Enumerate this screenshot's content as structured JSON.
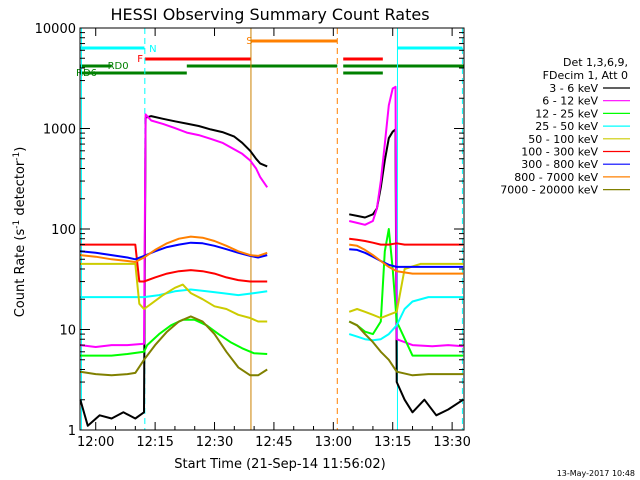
{
  "chart_data": {
    "type": "line",
    "title": "HESSI Observing Summary Count Rates",
    "xlabel": "Start Time (21-Sep-14 11:56:02)",
    "ylabel_main": "Count Rate (s",
    "ylabel_sup1": "-1",
    "ylabel_mid": " detector",
    "ylabel_sup2": "-1",
    "ylabel_end": ")",
    "ylim": [
      1,
      10000
    ],
    "yscale": "log",
    "xlim_minutes": [
      -3.97,
      93.0
    ],
    "x_ticks": [
      {
        "label": "12:00",
        "min": 0
      },
      {
        "label": "12:15",
        "min": 15
      },
      {
        "label": "12:30",
        "min": 30
      },
      {
        "label": "12:45",
        "min": 45
      },
      {
        "label": "13:00",
        "min": 60
      },
      {
        "label": "13:15",
        "min": 75
      },
      {
        "label": "13:30",
        "min": 90
      }
    ],
    "y_ticks": [
      {
        "label": "1",
        "v": 1
      },
      {
        "label": "10",
        "v": 10
      },
      {
        "label": "100",
        "v": 100
      },
      {
        "label": "1000",
        "v": 1000
      },
      {
        "label": "10000",
        "v": 10000
      }
    ],
    "legend_header": [
      "Det 1,3,6,9,",
      "FDecim 1, Att 0"
    ],
    "series": [
      {
        "name": "3 - 6 keV",
        "color": "#000000",
        "points": [
          [
            -3.9,
            2
          ],
          [
            -2,
            1.1
          ],
          [
            1,
            1.4
          ],
          [
            4,
            1.3
          ],
          [
            7,
            1.5
          ],
          [
            10,
            1.3
          ],
          [
            12.2,
            1.5
          ],
          [
            12.6,
            1280
          ],
          [
            14,
            1330
          ],
          [
            17,
            1250
          ],
          [
            20,
            1180
          ],
          [
            23,
            1120
          ],
          [
            26,
            1060
          ],
          [
            29,
            980
          ],
          [
            32,
            920
          ],
          [
            35,
            830
          ],
          [
            37,
            720
          ],
          [
            39,
            600
          ],
          [
            40.5,
            500
          ],
          [
            41.5,
            450
          ],
          [
            43.3,
            420
          ],
          [
            64,
            140
          ],
          [
            66,
            135
          ],
          [
            68,
            130
          ],
          [
            70,
            140
          ],
          [
            71,
            160
          ],
          [
            72,
            260
          ],
          [
            73,
            480
          ],
          [
            74,
            800
          ],
          [
            75,
            930
          ],
          [
            75.7,
            980
          ],
          [
            76,
            3
          ],
          [
            78,
            2
          ],
          [
            80,
            1.5
          ],
          [
            83,
            2
          ],
          [
            86,
            1.4
          ],
          [
            89,
            1.6
          ],
          [
            92.8,
            2
          ]
        ]
      },
      {
        "name": "6 - 12 keV",
        "color": "#ff00ff",
        "points": [
          [
            -3.9,
            7
          ],
          [
            0,
            6.7
          ],
          [
            4,
            7
          ],
          [
            8,
            7
          ],
          [
            12.2,
            7.2
          ],
          [
            12.6,
            1380
          ],
          [
            14,
            1200
          ],
          [
            17,
            1110
          ],
          [
            20,
            1010
          ],
          [
            23,
            910
          ],
          [
            26,
            860
          ],
          [
            29,
            790
          ],
          [
            32,
            720
          ],
          [
            35,
            620
          ],
          [
            37,
            560
          ],
          [
            39,
            480
          ],
          [
            40.5,
            400
          ],
          [
            41.5,
            330
          ],
          [
            43.3,
            260
          ],
          [
            64,
            120
          ],
          [
            66,
            115
          ],
          [
            68,
            110
          ],
          [
            70,
            120
          ],
          [
            71,
            160
          ],
          [
            72,
            300
          ],
          [
            73,
            700
          ],
          [
            74,
            1700
          ],
          [
            75,
            2500
          ],
          [
            75.7,
            2600
          ],
          [
            76,
            8
          ],
          [
            80,
            7
          ],
          [
            85,
            6.8
          ],
          [
            89,
            7
          ],
          [
            92.8,
            6.8
          ]
        ]
      },
      {
        "name": "12 - 25 keV",
        "color": "#00ff00",
        "points": [
          [
            -3.9,
            5.5
          ],
          [
            0,
            5.5
          ],
          [
            4,
            5.5
          ],
          [
            8,
            5.7
          ],
          [
            12.2,
            6
          ],
          [
            13,
            7
          ],
          [
            16,
            9
          ],
          [
            19,
            11
          ],
          [
            22,
            12.5
          ],
          [
            25,
            12.5
          ],
          [
            28,
            11
          ],
          [
            31,
            9
          ],
          [
            34,
            7.5
          ],
          [
            37,
            6.5
          ],
          [
            40,
            5.8
          ],
          [
            43.3,
            5.7
          ],
          [
            64,
            12
          ],
          [
            66,
            11
          ],
          [
            68,
            9.5
          ],
          [
            70,
            9
          ],
          [
            72,
            12
          ],
          [
            73,
            60
          ],
          [
            74,
            100
          ],
          [
            75,
            40
          ],
          [
            76,
            12
          ],
          [
            80,
            5.5
          ],
          [
            85,
            5.5
          ],
          [
            89,
            5.5
          ],
          [
            92.8,
            5.5
          ]
        ]
      },
      {
        "name": "25 - 50 keV",
        "color": "#00ffff",
        "points": [
          [
            -3.9,
            21
          ],
          [
            0,
            21
          ],
          [
            4,
            21
          ],
          [
            8,
            21
          ],
          [
            12.2,
            21
          ],
          [
            16,
            22
          ],
          [
            20,
            24
          ],
          [
            24,
            25
          ],
          [
            28,
            24
          ],
          [
            32,
            23
          ],
          [
            36,
            22
          ],
          [
            40,
            23
          ],
          [
            43.3,
            24
          ],
          [
            64,
            9
          ],
          [
            66,
            8.5
          ],
          [
            68,
            8
          ],
          [
            70,
            7.8
          ],
          [
            72,
            8
          ],
          [
            74,
            9
          ],
          [
            76,
            11
          ],
          [
            78,
            16
          ],
          [
            80,
            19
          ],
          [
            84,
            21
          ],
          [
            88,
            21
          ],
          [
            92.8,
            21
          ]
        ]
      },
      {
        "name": "50 - 100 keV",
        "color": "#cccc00",
        "points": [
          [
            -3.9,
            45
          ],
          [
            0,
            45
          ],
          [
            4,
            45
          ],
          [
            8,
            45
          ],
          [
            10,
            45
          ],
          [
            11,
            18
          ],
          [
            12.2,
            16
          ],
          [
            14,
            18
          ],
          [
            17,
            22
          ],
          [
            20,
            26
          ],
          [
            22,
            28
          ],
          [
            24,
            23
          ],
          [
            27,
            20
          ],
          [
            30,
            17
          ],
          [
            33,
            16
          ],
          [
            36,
            14
          ],
          [
            39,
            13
          ],
          [
            41,
            12
          ],
          [
            43.3,
            12
          ],
          [
            64,
            15
          ],
          [
            66,
            16
          ],
          [
            68,
            15
          ],
          [
            70,
            14
          ],
          [
            72,
            13
          ],
          [
            74,
            14
          ],
          [
            76,
            15
          ],
          [
            78,
            40
          ],
          [
            82,
            45
          ],
          [
            86,
            45
          ],
          [
            92.8,
            45
          ]
        ]
      },
      {
        "name": "100 - 300 keV",
        "color": "#ff0000",
        "points": [
          [
            -3.9,
            70
          ],
          [
            0,
            70
          ],
          [
            4,
            70
          ],
          [
            8,
            70
          ],
          [
            10,
            70
          ],
          [
            11,
            30
          ],
          [
            12.2,
            30
          ],
          [
            15,
            33
          ],
          [
            18,
            36
          ],
          [
            21,
            38
          ],
          [
            24,
            39
          ],
          [
            27,
            38
          ],
          [
            30,
            36
          ],
          [
            33,
            33
          ],
          [
            36,
            31
          ],
          [
            39,
            30
          ],
          [
            41,
            30
          ],
          [
            43.3,
            30
          ],
          [
            64,
            80
          ],
          [
            66,
            78
          ],
          [
            68,
            76
          ],
          [
            70,
            73
          ],
          [
            72,
            70
          ],
          [
            74,
            70
          ],
          [
            76,
            72
          ],
          [
            78,
            70
          ],
          [
            82,
            70
          ],
          [
            86,
            70
          ],
          [
            92.8,
            70
          ]
        ]
      },
      {
        "name": "300 - 800 keV",
        "color": "#0000ff",
        "points": [
          [
            -3.9,
            60
          ],
          [
            0,
            58
          ],
          [
            4,
            55
          ],
          [
            8,
            52
          ],
          [
            10,
            50
          ],
          [
            12.2,
            54
          ],
          [
            15,
            60
          ],
          [
            18,
            66
          ],
          [
            21,
            70
          ],
          [
            24,
            73
          ],
          [
            27,
            72
          ],
          [
            30,
            68
          ],
          [
            33,
            63
          ],
          [
            36,
            58
          ],
          [
            39,
            54
          ],
          [
            41,
            52
          ],
          [
            43.3,
            55
          ],
          [
            64,
            63
          ],
          [
            66,
            62
          ],
          [
            68,
            58
          ],
          [
            70,
            53
          ],
          [
            72,
            48
          ],
          [
            74,
            44
          ],
          [
            76,
            42
          ],
          [
            80,
            42
          ],
          [
            84,
            42
          ],
          [
            88,
            42
          ],
          [
            92.8,
            42
          ]
        ]
      },
      {
        "name": "800 - 7000 keV",
        "color": "#ff8000",
        "points": [
          [
            -3.9,
            55
          ],
          [
            0,
            53
          ],
          [
            4,
            50
          ],
          [
            8,
            48
          ],
          [
            10,
            47
          ],
          [
            12.2,
            52
          ],
          [
            15,
            62
          ],
          [
            18,
            72
          ],
          [
            21,
            80
          ],
          [
            24,
            84
          ],
          [
            27,
            82
          ],
          [
            30,
            76
          ],
          [
            33,
            68
          ],
          [
            36,
            60
          ],
          [
            39,
            55
          ],
          [
            41,
            54
          ],
          [
            43.3,
            58
          ],
          [
            64,
            70
          ],
          [
            66,
            68
          ],
          [
            68,
            62
          ],
          [
            70,
            55
          ],
          [
            72,
            48
          ],
          [
            74,
            42
          ],
          [
            76,
            38
          ],
          [
            80,
            36
          ],
          [
            84,
            36
          ],
          [
            88,
            36
          ],
          [
            92.8,
            36
          ]
        ]
      },
      {
        "name": "7000 - 20000 keV",
        "color": "#808000",
        "points": [
          [
            -3.9,
            3.8
          ],
          [
            0,
            3.6
          ],
          [
            4,
            3.5
          ],
          [
            8,
            3.6
          ],
          [
            10,
            3.7
          ],
          [
            12.2,
            5
          ],
          [
            15,
            7
          ],
          [
            18,
            9.5
          ],
          [
            21,
            12
          ],
          [
            24,
            13.5
          ],
          [
            27,
            12
          ],
          [
            30,
            9
          ],
          [
            33,
            6
          ],
          [
            36,
            4.2
          ],
          [
            39,
            3.5
          ],
          [
            41,
            3.5
          ],
          [
            43.3,
            4
          ],
          [
            64,
            12
          ],
          [
            66,
            11
          ],
          [
            68,
            9
          ],
          [
            70,
            7.5
          ],
          [
            72,
            6
          ],
          [
            74,
            5
          ],
          [
            76,
            3.8
          ],
          [
            80,
            3.5
          ],
          [
            84,
            3.6
          ],
          [
            88,
            3.6
          ],
          [
            92.8,
            3.6
          ]
        ]
      }
    ],
    "vertical_lines": [
      {
        "min": -3.6,
        "color": "#00ffff",
        "style": "solid"
      },
      {
        "min": 12.4,
        "color": "#00ffff",
        "style": "dashed"
      },
      {
        "min": 39.2,
        "color": "#cc8000",
        "style": "solid"
      },
      {
        "min": 61.0,
        "color": "#ff8000",
        "style": "dashed"
      },
      {
        "min": 76.2,
        "color": "#00ffff",
        "style": "solid"
      },
      {
        "min": 92.6,
        "color": "#00ffff",
        "style": "dashed"
      }
    ],
    "flag_bars": [
      {
        "label": "N",
        "color": "#00ffff",
        "label_at": 13.5,
        "level": "N",
        "segments": [
          [
            -4.0,
            12.3
          ],
          [
            76.1,
            92.6
          ]
        ]
      },
      {
        "label": "S",
        "color": "#ff8000",
        "label_at": 38.0,
        "level": "S",
        "segments": [
          [
            39.2,
            61.0
          ]
        ]
      },
      {
        "label": "F",
        "color": "#ff0000",
        "label_at": 10.5,
        "level": "F",
        "segments": [
          [
            12.4,
            39.2
          ],
          [
            62.5,
            72.5
          ]
        ]
      },
      {
        "label": "RD0",
        "color": "#008000",
        "label_at": 3.0,
        "level": "RD0",
        "segments": [
          [
            -4.0,
            4.0
          ],
          [
            23.0,
            61.0
          ],
          [
            62.5,
            76.1
          ],
          [
            76.1,
            93.0
          ]
        ]
      },
      {
        "label": "RD6",
        "color": "#008000",
        "label_at": -4.0,
        "level": "RD6",
        "segments": [
          [
            -4.0,
            23.0
          ],
          [
            62.5,
            72.5
          ]
        ]
      }
    ]
  },
  "footer_date": "13-May-2017 10:48"
}
